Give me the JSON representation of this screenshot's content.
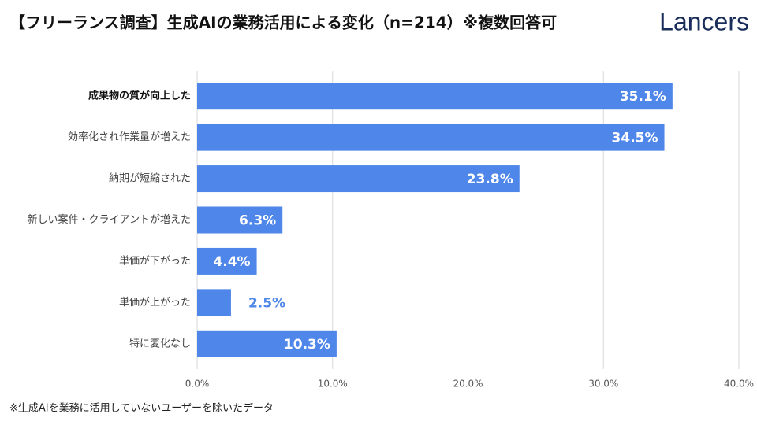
{
  "chart_data": {
    "type": "hbar",
    "title": "【フリーランス調査】生成AIの業務活用による変化（n=214）※複数回答可",
    "categories": [
      "成果物の質が向上した",
      "効率化され作業量が増えた",
      "納期が短縮された",
      "新しい案件・クライアントが増えた",
      "単価が下がった",
      "単価が上がった",
      "特に変化なし"
    ],
    "values": [
      35.1,
      34.5,
      23.8,
      6.3,
      4.4,
      2.5,
      10.3
    ],
    "value_labels": [
      "35.1%",
      "34.5%",
      "23.8%",
      "6.3%",
      "4.4%",
      "2.5%",
      "10.3%"
    ],
    "color": "#4f86e9",
    "xlim": [
      0,
      40
    ],
    "xticks": [
      {
        "value": 0,
        "label": "0.0%"
      },
      {
        "value": 10,
        "label": "10.0%"
      },
      {
        "value": 20,
        "label": "20.0%"
      },
      {
        "value": 30,
        "label": "30.0%"
      },
      {
        "value": 40,
        "label": "40.0%"
      }
    ],
    "grid": true,
    "note": "※生成AIを業務に活用していないユーザーを除いたデータ"
  },
  "brand": "Lancers"
}
